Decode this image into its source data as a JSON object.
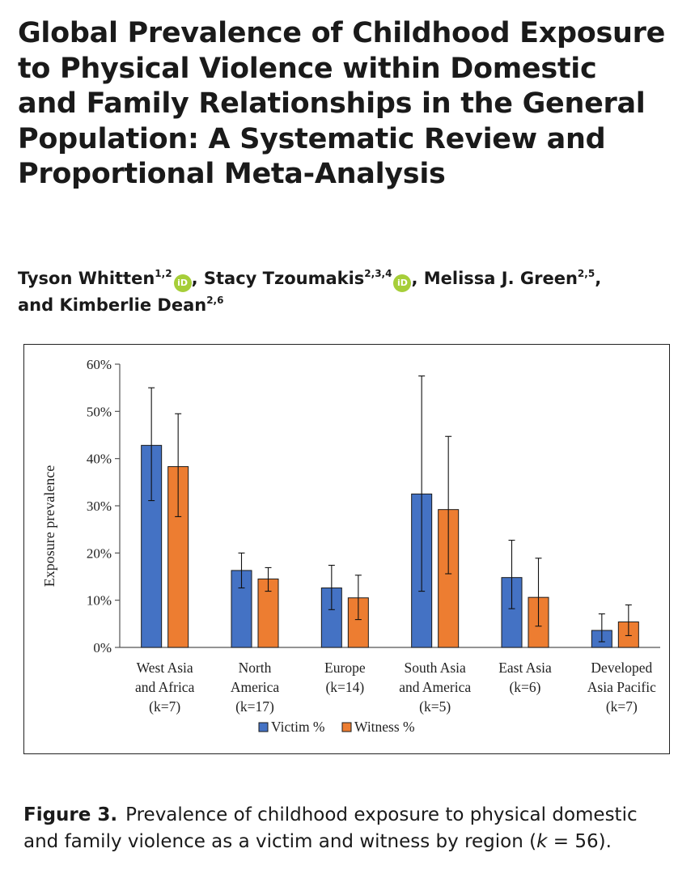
{
  "paper": {
    "title_lines": [
      "Global Prevalence of Childhood Exposure",
      "to Physical Violence within Domestic",
      "and Family Relationships in the General",
      "Population: A Systematic Review and",
      "Proportional Meta-Analysis"
    ],
    "authors": [
      {
        "name": "Tyson Whitten",
        "affil": "1,2",
        "orcid": true,
        "sep": ", "
      },
      {
        "name": "Stacy Tzoumakis",
        "affil": "2,3,4",
        "orcid": true,
        "sep": ", "
      },
      {
        "name": "Melissa J. Green",
        "affil": "2,5",
        "orcid": false,
        "sep": ","
      },
      {
        "name": "and Kimberlie Dean",
        "affil": "2,6",
        "orcid": false,
        "sep": ""
      }
    ],
    "orcid_label": "iD",
    "caption": {
      "label": "Figure 3.",
      "text": "Prevalence of childhood exposure to physical domestic and family violence as a victim and witness by region (",
      "k_symbol": "k",
      "k_value": " = 56)."
    }
  },
  "chart_data": {
    "type": "bar",
    "title": "",
    "ylabel": "Exposure prevalence",
    "xlabel": "",
    "ylim": [
      0,
      60
    ],
    "yticks": [
      "0%",
      "10%",
      "20%",
      "30%",
      "40%",
      "50%",
      "60%"
    ],
    "ytick_values": [
      0,
      10,
      20,
      30,
      40,
      50,
      60
    ],
    "legend_position": "bottom",
    "categories": [
      [
        "West Asia",
        "and Africa",
        "(k=7)"
      ],
      [
        "North",
        "America",
        "(k=17)"
      ],
      [
        "Europe",
        "(k=14)"
      ],
      [
        "South Asia",
        "and America",
        "(k=5)"
      ],
      [
        "East Asia",
        "(k=6)"
      ],
      [
        "Developed",
        "Asia Pacific",
        "(k=7)"
      ]
    ],
    "series": [
      {
        "name": "Victim %",
        "color": "#4472c4",
        "values": [
          42.8,
          16.3,
          12.6,
          32.5,
          14.8,
          3.6
        ],
        "err_low": [
          31.1,
          12.6,
          8.0,
          11.9,
          8.2,
          1.2
        ],
        "err_high": [
          55.0,
          20.0,
          17.4,
          57.5,
          22.7,
          7.1
        ]
      },
      {
        "name": "Witness %",
        "color": "#ed7d31",
        "values": [
          38.3,
          14.5,
          10.5,
          29.2,
          10.6,
          5.4
        ],
        "err_low": [
          27.7,
          11.9,
          5.9,
          15.6,
          4.5,
          2.5
        ],
        "err_high": [
          49.5,
          16.9,
          15.3,
          44.7,
          18.9,
          9.0
        ]
      }
    ]
  }
}
